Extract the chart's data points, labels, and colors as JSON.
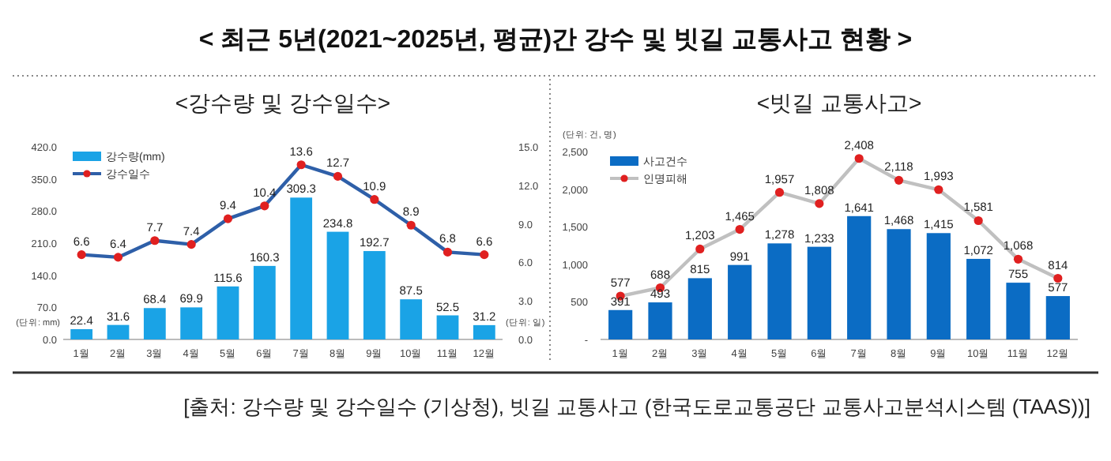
{
  "chart_data": [
    {
      "type": "bar",
      "title": "< 최근 5년(2021~2025년, 평균)간 강수 및 빗길 교통사고 현황 >",
      "subtitle": "<강수량 및 강수일수>",
      "ylabel": "(단위: mm)",
      "y2label": "(단위: 일)",
      "categories": [
        "1월",
        "2월",
        "3월",
        "4월",
        "5월",
        "6월",
        "7월",
        "8월",
        "9월",
        "10월",
        "11월",
        "12월"
      ],
      "series": [
        {
          "name": "강수량(mm)",
          "color": "#1aa3e6",
          "values": [
            22.4,
            31.6,
            68.4,
            69.9,
            115.6,
            160.3,
            309.3,
            234.8,
            192.7,
            87.5,
            52.5,
            31.2
          ]
        },
        {
          "name": "강수일수",
          "type": "line",
          "axis": "y2",
          "color": "#2e5fa8",
          "colors": [
            "#e02020",
            "#e02020",
            "#e02020",
            "#e02020",
            "#e02020",
            "#e02020",
            "#e02020",
            "#e02020",
            "#e02020",
            "#e02020",
            "#e02020",
            "#e02020"
          ],
          "marker": "circle",
          "values": [
            6.6,
            6.4,
            7.7,
            7.4,
            9.4,
            10.4,
            13.6,
            12.7,
            10.9,
            8.9,
            6.8,
            6.6
          ]
        }
      ],
      "data_labels": true,
      "ylim": [
        0,
        420
      ],
      "yticks": [
        {
          "value": 0,
          "label": "0.0"
        },
        {
          "value": 70,
          "label": "70.0"
        },
        {
          "value": 140,
          "label": "140.0"
        },
        {
          "value": 210,
          "label": "210.0"
        },
        {
          "value": 280,
          "label": "280.0"
        },
        {
          "value": 350,
          "label": "350.0"
        },
        {
          "value": 420,
          "label": "420.0"
        }
      ],
      "y2lim": [
        0,
        15
      ],
      "y2ticks": [
        {
          "value": 0,
          "label": "0.0"
        },
        {
          "value": 3,
          "label": "3.0"
        },
        {
          "value": 6,
          "label": "6.0"
        },
        {
          "value": 9,
          "label": "9.0"
        },
        {
          "value": 12,
          "label": "12.0"
        },
        {
          "value": 15,
          "label": "15.0"
        }
      ],
      "legend": "top left"
    },
    {
      "type": "bar",
      "title": "<빗길 교통사고>",
      "ylabel": "(단위: 건, 명)",
      "categories": [
        "1월",
        "2월",
        "3월",
        "4월",
        "5월",
        "6월",
        "7월",
        "8월",
        "9월",
        "10월",
        "11월",
        "12월"
      ],
      "series": [
        {
          "name": "사고건수",
          "color": "#0b6cc4",
          "values": [
            391,
            493,
            815,
            991,
            1278,
            1233,
            1641,
            1468,
            1415,
            1072,
            755,
            577
          ],
          "value_labels": [
            "391",
            "493",
            "815",
            "991",
            "1,278",
            "1,233",
            "1,641",
            "1,468",
            "1,415",
            "1,072",
            "755",
            "577"
          ]
        },
        {
          "name": "인명피해",
          "type": "line",
          "color": "#c0c0c0",
          "colors": [
            "#e02020",
            "#e02020",
            "#e02020",
            "#e02020",
            "#e02020",
            "#e02020",
            "#e02020",
            "#e02020",
            "#e02020",
            "#e02020",
            "#e02020",
            "#e02020"
          ],
          "marker": "circle",
          "values": [
            577,
            688,
            1203,
            1465,
            1957,
            1808,
            2408,
            2118,
            1993,
            1581,
            1068,
            814
          ],
          "value_labels": [
            "577",
            "688",
            "1,203",
            "1,465",
            "1,957",
            "1,808",
            "2,408",
            "2,118",
            "1,993",
            "1,581",
            "1,068",
            "814"
          ]
        }
      ],
      "ylim": [
        0,
        2500
      ],
      "yticks": [
        {
          "value": 0,
          "label": "-"
        },
        500,
        {
          "value": 1000,
          "label": "1,000"
        },
        {
          "value": 1500,
          "label": "1,500"
        },
        {
          "value": 2000,
          "label": "2,000"
        },
        {
          "value": 2500,
          "label": "2,500"
        }
      ],
      "legend": "top left",
      "annotations": [
        "[출처: 강수량 및 강수일수 (기상청), 빗길 교통사고 (한국도로교통공단 교통사고분석시스템 (TAAS))]"
      ]
    }
  ]
}
